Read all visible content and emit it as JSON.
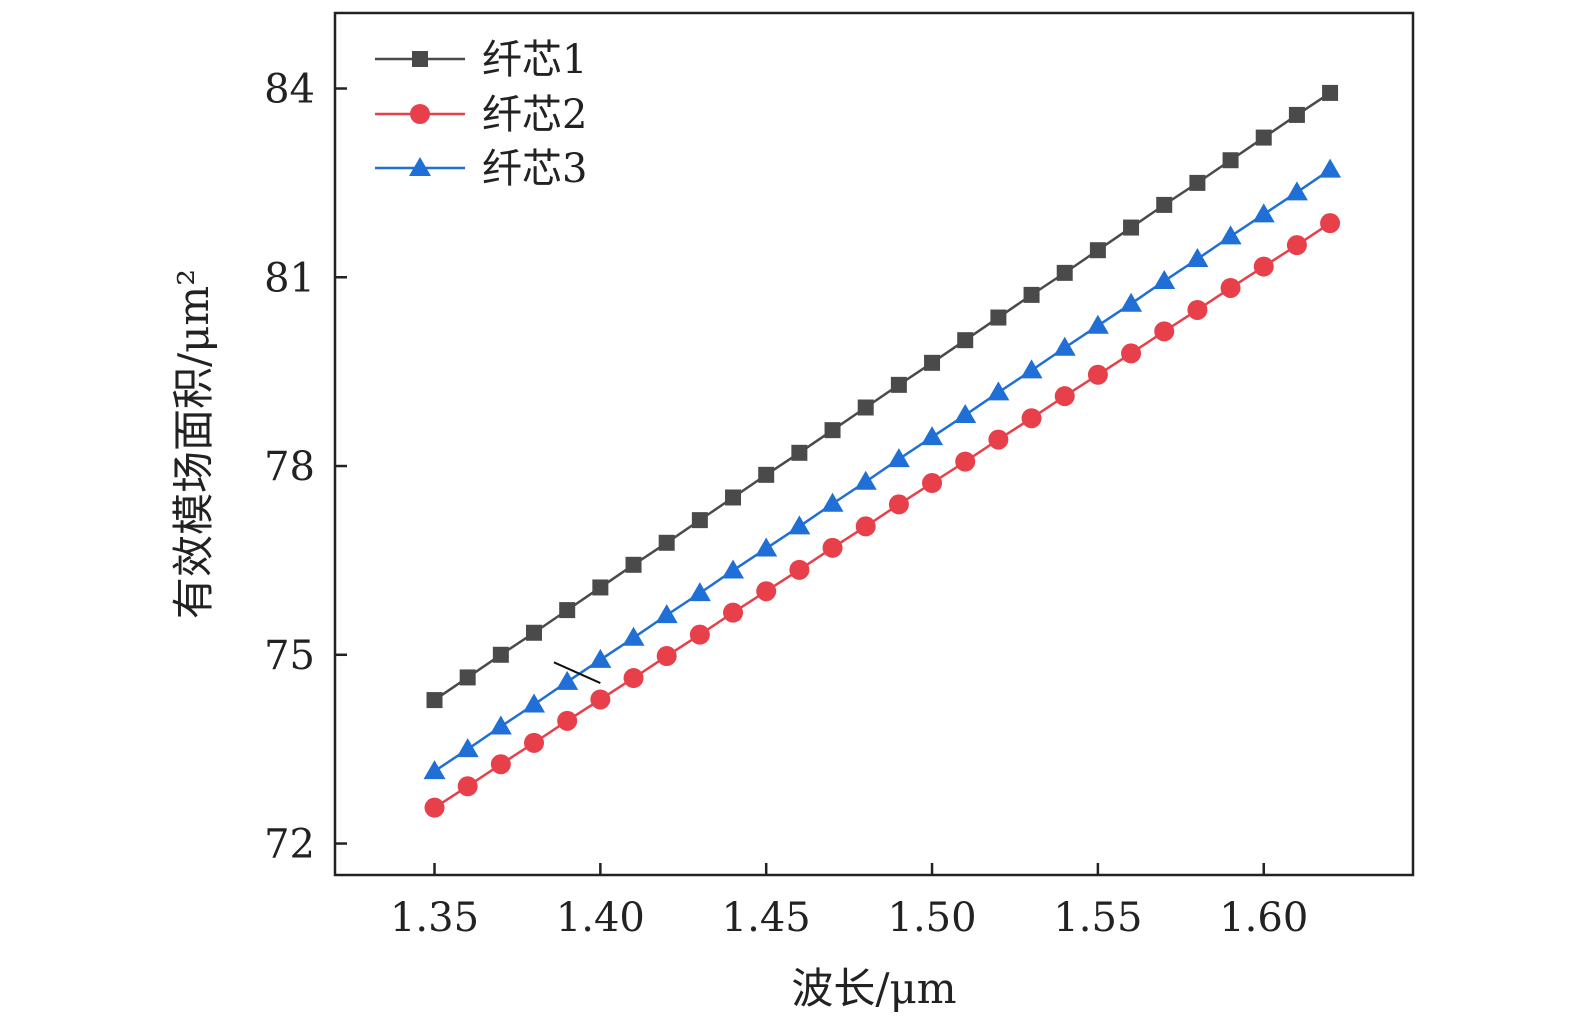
{
  "chart_data": {
    "type": "line",
    "title": "",
    "xlabel": "波长/μm",
    "ylabel": "有效模场面积/μm²",
    "xlim": [
      1.32,
      1.645
    ],
    "ylim": [
      71.5,
      85.2
    ],
    "xticks": [
      1.35,
      1.4,
      1.45,
      1.5,
      1.55,
      1.6
    ],
    "xtick_labels": [
      "1.35",
      "1.40",
      "1.45",
      "1.50",
      "1.55",
      "1.60"
    ],
    "yticks": [
      72,
      75,
      78,
      81,
      84
    ],
    "ytick_labels": [
      "72",
      "75",
      "78",
      "81",
      "84"
    ],
    "grid": false,
    "legend_position": "top-left",
    "x": [
      1.35,
      1.36,
      1.37,
      1.38,
      1.39,
      1.4,
      1.41,
      1.42,
      1.43,
      1.44,
      1.45,
      1.46,
      1.47,
      1.48,
      1.49,
      1.5,
      1.51,
      1.52,
      1.53,
      1.54,
      1.55,
      1.56,
      1.57,
      1.58,
      1.59,
      1.6,
      1.61,
      1.62
    ],
    "series": [
      {
        "name": "纤芯1",
        "marker": "square",
        "color": "#4a4a4a",
        "values": [
          74.28,
          74.64,
          75.0,
          75.35,
          75.71,
          76.07,
          76.43,
          76.78,
          77.14,
          77.5,
          77.86,
          78.21,
          78.57,
          78.93,
          79.29,
          79.64,
          80.0,
          80.36,
          80.72,
          81.07,
          81.43,
          81.79,
          82.15,
          82.5,
          82.86,
          83.22,
          83.58,
          83.93
        ]
      },
      {
        "name": "纤芯2",
        "marker": "circle",
        "color": "#e8404a",
        "values": [
          72.57,
          72.91,
          73.26,
          73.6,
          73.95,
          74.29,
          74.63,
          74.98,
          75.32,
          75.67,
          76.01,
          76.35,
          76.7,
          77.04,
          77.39,
          77.73,
          78.07,
          78.42,
          78.76,
          79.11,
          79.45,
          79.79,
          80.14,
          80.48,
          80.83,
          81.17,
          81.51,
          81.86
        ]
      },
      {
        "name": "纤芯3",
        "marker": "triangle",
        "color": "#1f6fd6",
        "values": [
          73.15,
          73.5,
          73.86,
          74.21,
          74.57,
          74.92,
          75.27,
          75.63,
          75.98,
          76.34,
          76.69,
          77.04,
          77.4,
          77.75,
          78.11,
          78.46,
          78.81,
          79.17,
          79.52,
          79.88,
          80.23,
          80.58,
          80.94,
          81.29,
          81.65,
          82.0,
          82.35,
          82.71
        ]
      }
    ],
    "annotations": [
      {
        "type": "slash-mark",
        "x_from": 1.386,
        "y_from": 74.88,
        "x_to": 1.4,
        "y_to": 74.55
      }
    ]
  }
}
